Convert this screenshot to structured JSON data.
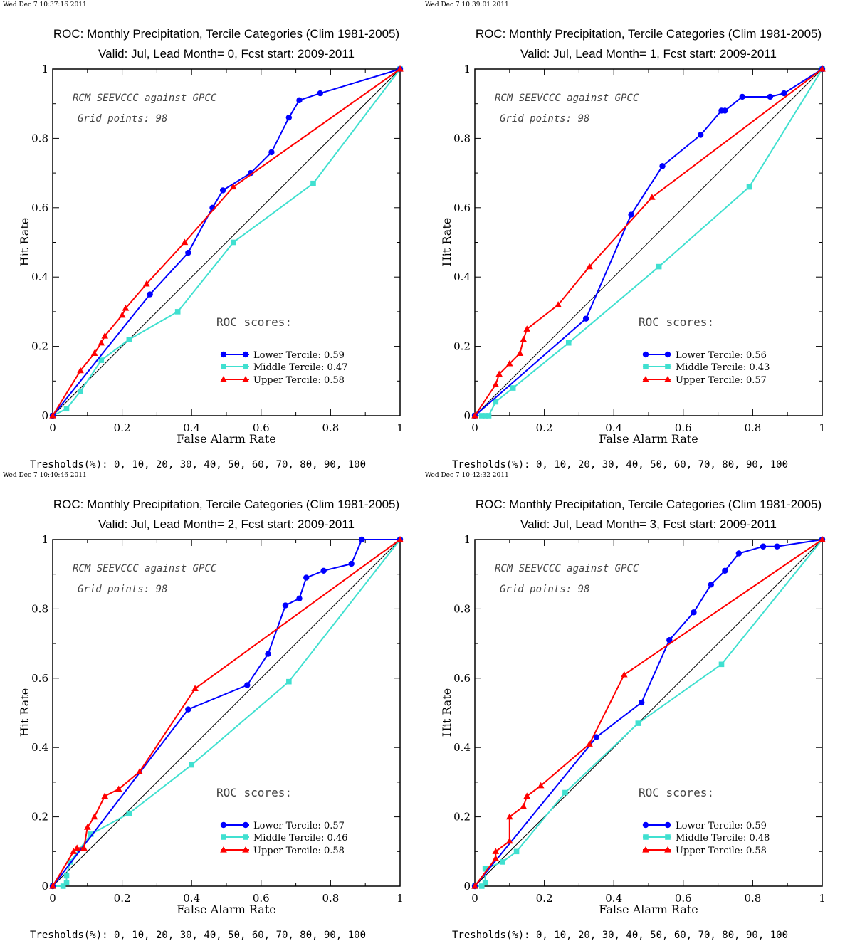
{
  "charts": [
    {
      "timestamp": "Wed Dec  7 10:37:16 2011",
      "title": "ROC: Monthly Precipitation, Tercile Categories (Clim 1981-2005)",
      "subtitle": "Valid: Jul, Lead Month= 0, Fcst start: 2009-2011",
      "ylabel": "Hit Rate",
      "xlabel": "False Alarm Rate",
      "annotation_line1": "RCM SEEVCCC against GPCC",
      "annotation_line2": "Grid points:   98",
      "scores_label": "ROC scores:",
      "thresholds": "Tresholds(%): 0, 10, 20, 30, 40, 50, 60, 70, 80, 90, 100",
      "x_ticks": [
        "0",
        "0.2",
        "0.4",
        "0.6",
        "0.8",
        "1"
      ],
      "y_ticks": [
        "0",
        "0.2",
        "0.4",
        "0.6",
        "0.8",
        "1"
      ]
    },
    {
      "timestamp": "Wed Dec  7 10:39:01 2011",
      "title": "ROC: Monthly Precipitation, Tercile Categories (Clim 1981-2005)",
      "subtitle": "Valid: Jul, Lead Month= 1, Fcst start: 2009-2011",
      "ylabel": "Hit Rate",
      "xlabel": "False Alarm Rate",
      "annotation_line1": "RCM SEEVCCC against GPCC",
      "annotation_line2": "Grid points:   98",
      "scores_label": "ROC scores:",
      "thresholds": "Tresholds(%): 0, 10, 20, 30, 40, 50, 60, 70, 80, 90, 100",
      "x_ticks": [
        "0",
        "0.2",
        "0.4",
        "0.6",
        "0.8",
        "1"
      ],
      "y_ticks": [
        "0",
        "0.2",
        "0.4",
        "0.6",
        "0.8",
        "1"
      ]
    },
    {
      "timestamp": "Wed Dec  7 10:40:46 2011",
      "title": "ROC: Monthly Precipitation, Tercile Categories (Clim 1981-2005)",
      "subtitle": "Valid: Jul, Lead Month= 2, Fcst start: 2009-2011",
      "ylabel": "Hit Rate",
      "xlabel": "False Alarm Rate",
      "annotation_line1": "RCM SEEVCCC against GPCC",
      "annotation_line2": "Grid points:   98",
      "scores_label": "ROC scores:",
      "thresholds": "Tresholds(%): 0, 10, 20, 30, 40, 50, 60, 70, 80, 90, 100",
      "x_ticks": [
        "0",
        "0.2",
        "0.4",
        "0.6",
        "0.8",
        "1"
      ],
      "y_ticks": [
        "0",
        "0.2",
        "0.4",
        "0.6",
        "0.8",
        "1"
      ]
    },
    {
      "timestamp": "Wed Dec  7 10:42:32 2011",
      "title": "ROC: Monthly Precipitation, Tercile Categories (Clim 1981-2005)",
      "subtitle": "Valid: Jul, Lead Month= 3, Fcst start: 2009-2011",
      "ylabel": "Hit Rate",
      "xlabel": "False Alarm Rate",
      "annotation_line1": "RCM SEEVCCC against GPCC",
      "annotation_line2": "Grid points:   98",
      "scores_label": "ROC scores:",
      "thresholds": "Tresholds(%): 0, 10, 20, 30, 40, 50, 60, 70, 80, 90, 100",
      "x_ticks": [
        "0",
        "0.2",
        "0.4",
        "0.6",
        "0.8",
        "1"
      ],
      "y_ticks": [
        "0",
        "0.2",
        "0.4",
        "0.6",
        "0.8",
        "1"
      ]
    }
  ],
  "chart_data": [
    {
      "type": "line",
      "title": "ROC: Monthly Precipitation, Tercile Categories (Clim 1981-2005)",
      "subtitle": "Valid: Jul, Lead Month= 0, Fcst start: 2009-2011",
      "xlabel": "False Alarm Rate",
      "ylabel": "Hit Rate",
      "xlim": [
        0,
        1
      ],
      "ylim": [
        0,
        1
      ],
      "grid": false,
      "legend_position": "lower-right",
      "series": [
        {
          "name": "Lower Tercile: 0.59",
          "color": "#0000ff",
          "marker": "circle",
          "x": [
            0,
            0.28,
            0.39,
            0.46,
            0.49,
            0.57,
            0.63,
            0.68,
            0.71,
            0.77,
            1
          ],
          "y": [
            0,
            0.35,
            0.47,
            0.6,
            0.65,
            0.7,
            0.76,
            0.86,
            0.91,
            0.93,
            1
          ]
        },
        {
          "name": "Middle Tercile: 0.47",
          "color": "#40e0d0",
          "marker": "square",
          "x": [
            0,
            0.04,
            0.08,
            0.14,
            0.22,
            0.36,
            0.52,
            0.75,
            1
          ],
          "y": [
            0,
            0.02,
            0.07,
            0.16,
            0.22,
            0.3,
            0.5,
            0.67,
            1
          ]
        },
        {
          "name": "Upper Tercile: 0.58",
          "color": "#ff0000",
          "marker": "triangle",
          "x": [
            0,
            0.08,
            0.12,
            0.14,
            0.15,
            0.2,
            0.21,
            0.27,
            0.38,
            0.52,
            1
          ],
          "y": [
            0,
            0.13,
            0.18,
            0.21,
            0.23,
            0.29,
            0.31,
            0.38,
            0.5,
            0.66,
            1
          ]
        }
      ]
    },
    {
      "type": "line",
      "title": "ROC: Monthly Precipitation, Tercile Categories (Clim 1981-2005)",
      "subtitle": "Valid: Jul, Lead Month= 1, Fcst start: 2009-2011",
      "xlabel": "False Alarm Rate",
      "ylabel": "Hit Rate",
      "xlim": [
        0,
        1
      ],
      "ylim": [
        0,
        1
      ],
      "grid": false,
      "legend_position": "lower-right",
      "series": [
        {
          "name": "Lower Tercile: 0.56",
          "color": "#0000ff",
          "marker": "circle",
          "x": [
            0,
            0.32,
            0.45,
            0.54,
            0.65,
            0.71,
            0.72,
            0.77,
            0.85,
            0.89,
            1
          ],
          "y": [
            0,
            0.28,
            0.58,
            0.72,
            0.81,
            0.88,
            0.88,
            0.92,
            0.92,
            0.93,
            1
          ]
        },
        {
          "name": "Middle Tercile: 0.43",
          "color": "#40e0d0",
          "marker": "square",
          "x": [
            0,
            0.02,
            0.03,
            0.04,
            0.06,
            0.11,
            0.27,
            0.53,
            0.79,
            1
          ],
          "y": [
            0,
            0.0,
            0.0,
            0.0,
            0.04,
            0.08,
            0.21,
            0.43,
            0.66,
            1
          ]
        },
        {
          "name": "Upper Tercile: 0.57",
          "color": "#ff0000",
          "marker": "triangle",
          "x": [
            0,
            0.06,
            0.07,
            0.1,
            0.13,
            0.14,
            0.15,
            0.24,
            0.33,
            0.51,
            1
          ],
          "y": [
            0,
            0.09,
            0.12,
            0.15,
            0.18,
            0.22,
            0.25,
            0.32,
            0.43,
            0.63,
            1
          ]
        }
      ]
    },
    {
      "type": "line",
      "title": "ROC: Monthly Precipitation, Tercile Categories (Clim 1981-2005)",
      "subtitle": "Valid: Jul, Lead Month= 2, Fcst start: 2009-2011",
      "xlabel": "False Alarm Rate",
      "ylabel": "Hit Rate",
      "xlim": [
        0,
        1
      ],
      "ylim": [
        0,
        1
      ],
      "grid": false,
      "legend_position": "lower-right",
      "series": [
        {
          "name": "Lower Tercile: 0.57",
          "color": "#0000ff",
          "marker": "circle",
          "x": [
            0,
            0.39,
            0.56,
            0.62,
            0.67,
            0.71,
            0.73,
            0.78,
            0.86,
            0.89,
            1
          ],
          "y": [
            0,
            0.51,
            0.58,
            0.67,
            0.81,
            0.83,
            0.89,
            0.91,
            0.93,
            1.0,
            1
          ]
        },
        {
          "name": "Middle Tercile: 0.46",
          "color": "#40e0d0",
          "marker": "square",
          "x": [
            0,
            0.03,
            0.04,
            0.04,
            0.05,
            0.11,
            0.22,
            0.4,
            0.68,
            1
          ],
          "y": [
            0,
            0.0,
            0.01,
            0.03,
            0.07,
            0.15,
            0.21,
            0.35,
            0.59,
            1
          ]
        },
        {
          "name": "Upper Tercile: 0.58",
          "color": "#ff0000",
          "marker": "triangle",
          "x": [
            0,
            0.06,
            0.07,
            0.09,
            0.1,
            0.12,
            0.15,
            0.19,
            0.25,
            0.41,
            1
          ],
          "y": [
            0,
            0.1,
            0.11,
            0.11,
            0.17,
            0.2,
            0.26,
            0.28,
            0.33,
            0.57,
            1
          ]
        }
      ]
    },
    {
      "type": "line",
      "title": "ROC: Monthly Precipitation, Tercile Categories (Clim 1981-2005)",
      "subtitle": "Valid: Jul, Lead Month= 3, Fcst start: 2009-2011",
      "xlabel": "False Alarm Rate",
      "ylabel": "Hit Rate",
      "xlim": [
        0,
        1
      ],
      "ylim": [
        0,
        1
      ],
      "grid": false,
      "legend_position": "lower-right",
      "series": [
        {
          "name": "Lower Tercile: 0.59",
          "color": "#0000ff",
          "marker": "circle",
          "x": [
            0,
            0.35,
            0.48,
            0.56,
            0.63,
            0.68,
            0.72,
            0.76,
            0.83,
            0.87,
            1
          ],
          "y": [
            0,
            0.43,
            0.53,
            0.71,
            0.79,
            0.87,
            0.91,
            0.96,
            0.98,
            0.98,
            1
          ]
        },
        {
          "name": "Middle Tercile: 0.48",
          "color": "#40e0d0",
          "marker": "square",
          "x": [
            0,
            0.02,
            0.03,
            0.03,
            0.08,
            0.12,
            0.26,
            0.47,
            0.71,
            1
          ],
          "y": [
            0,
            0.0,
            0.01,
            0.05,
            0.07,
            0.1,
            0.27,
            0.47,
            0.64,
            1
          ]
        },
        {
          "name": "Upper Tercile: 0.58",
          "color": "#ff0000",
          "marker": "triangle",
          "x": [
            0,
            0.06,
            0.06,
            0.1,
            0.1,
            0.14,
            0.15,
            0.19,
            0.33,
            0.43,
            1
          ],
          "y": [
            0,
            0.08,
            0.1,
            0.13,
            0.2,
            0.23,
            0.26,
            0.29,
            0.41,
            0.61,
            1
          ]
        }
      ]
    }
  ]
}
